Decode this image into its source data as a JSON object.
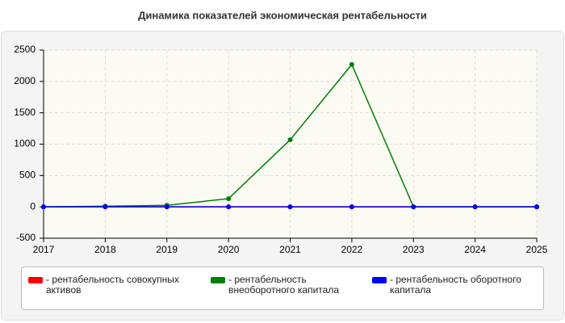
{
  "chart_data": {
    "type": "line",
    "title": "Динамика показателей экономическая рентабельности",
    "x": [
      2017,
      2018,
      2019,
      2020,
      2021,
      2022,
      2023,
      2024,
      2025
    ],
    "series": [
      {
        "name": "- рентабельность совокупных активов",
        "color": "#ff0000",
        "values": [
          0,
          0,
          0,
          0,
          0,
          0,
          0,
          0,
          0
        ]
      },
      {
        "name": "- рентабельность внеоборотного капитала",
        "color": "#008000",
        "values": [
          0,
          10,
          25,
          130,
          1070,
          2270,
          0,
          0,
          0
        ]
      },
      {
        "name": "- рентабельность оборотного капитала",
        "color": "#0000ff",
        "values": [
          0,
          0,
          0,
          0,
          0,
          0,
          0,
          0,
          0
        ]
      }
    ],
    "xlim": [
      2017,
      2025
    ],
    "xticks": [
      2017,
      2018,
      2019,
      2020,
      2021,
      2022,
      2023,
      2024,
      2025
    ],
    "ylim": [
      -500,
      2500
    ],
    "yticks": [
      -500,
      0,
      500,
      1000,
      1500,
      2000,
      2500
    ],
    "grid": true
  }
}
